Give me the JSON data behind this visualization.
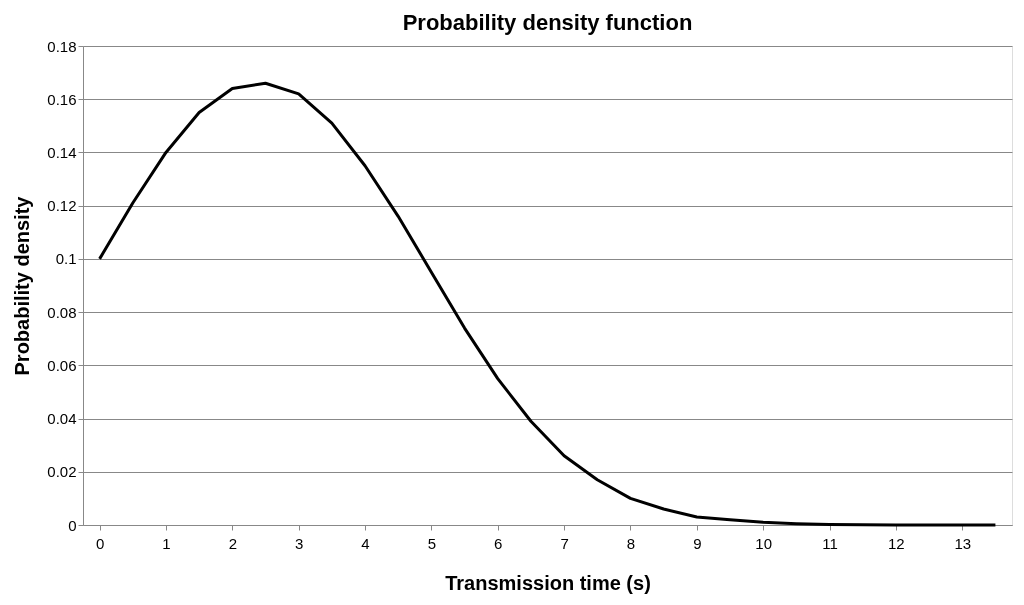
{
  "chart_data": {
    "type": "line",
    "title": "Probability density function",
    "xlabel": "Transmission time (s)",
    "ylabel": "Probability density",
    "x": [
      0,
      0.5,
      1,
      1.5,
      2,
      2.5,
      3,
      3.5,
      4,
      4.5,
      5,
      5.5,
      6,
      6.5,
      7,
      7.5,
      8,
      8.5,
      9,
      9.5,
      10,
      10.5,
      11,
      11.5,
      12,
      12.5,
      13,
      13.5
    ],
    "series": [
      {
        "color": "#000000",
        "values": [
          0.1,
          0.121,
          0.14,
          0.155,
          0.164,
          0.166,
          0.162,
          0.151,
          0.135,
          0.116,
          0.095,
          0.074,
          0.055,
          0.039,
          0.026,
          0.017,
          0.01,
          0.006,
          0.003,
          0.002,
          0.001,
          0.0005,
          0.0002,
          0.0001,
          0,
          0,
          0,
          0
        ]
      }
    ],
    "xlim": [
      -0.25,
      13.75
    ],
    "xticks": [
      0,
      1,
      2,
      3,
      4,
      5,
      6,
      7,
      8,
      9,
      10,
      11,
      12,
      13
    ],
    "ylim": [
      0,
      0.18
    ],
    "yticks": [
      0,
      0.02,
      0.04,
      0.06,
      0.08,
      0.1,
      0.12,
      0.14,
      0.16,
      0.18
    ],
    "grid": "y",
    "marker": "none",
    "line_style": "solid"
  }
}
